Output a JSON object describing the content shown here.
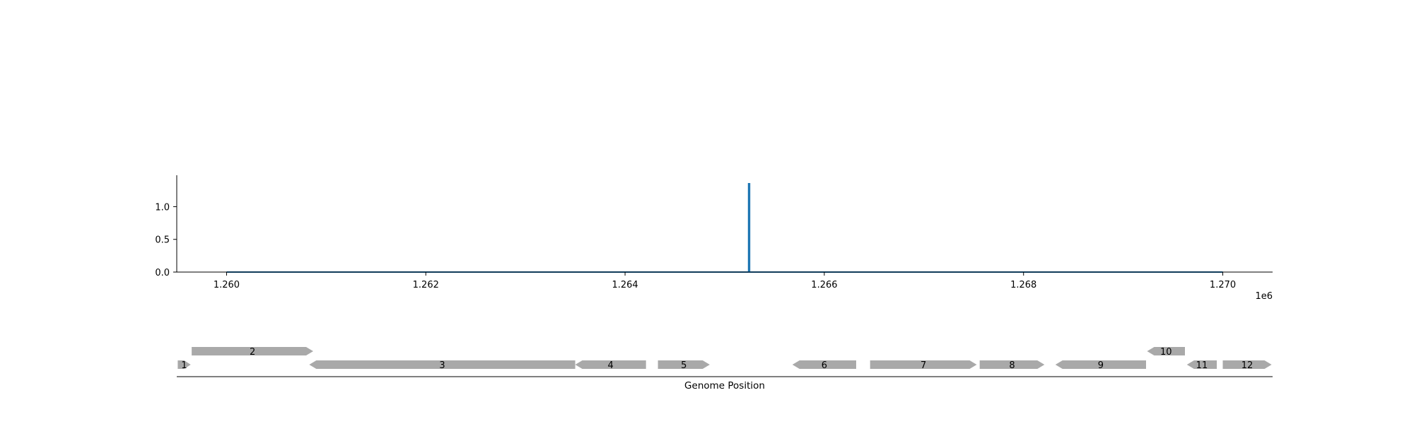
{
  "chart_data": [
    {
      "type": "line",
      "title": "",
      "xlabel": "",
      "ylabel": "",
      "x_offset_label": "1e6",
      "xlim": [
        1259500,
        1270500
      ],
      "ylim": [
        0,
        1.48
      ],
      "x_ticks": [
        1260000,
        1262000,
        1264000,
        1266000,
        1268000,
        1270000
      ],
      "x_tick_labels": [
        "1.260",
        "1.262",
        "1.264",
        "1.266",
        "1.268",
        "1.270"
      ],
      "y_ticks": [
        0.0,
        0.5,
        1.0
      ],
      "y_tick_labels": [
        "0.0",
        "0.5",
        "1.0"
      ],
      "grid": false,
      "series": [
        {
          "color": "#1f77b4",
          "points": [
            [
              1260000,
              0.0
            ],
            [
              1265240,
              0.0
            ],
            [
              1265240,
              1.35
            ],
            [
              1265250,
              1.35
            ],
            [
              1265250,
              0.0
            ],
            [
              1270000,
              0.0
            ]
          ]
        }
      ]
    },
    {
      "type": "gene-track",
      "xlabel": "Genome Position",
      "xlim": [
        1259500,
        1270500
      ],
      "color": "#a9a9a9",
      "genes": [
        {
          "label": "1",
          "start": 1259510,
          "end": 1259640,
          "strand": "+",
          "row": 0
        },
        {
          "label": "2",
          "start": 1259650,
          "end": 1260870,
          "strand": "+",
          "row": 1
        },
        {
          "label": "3",
          "start": 1260830,
          "end": 1263500,
          "strand": "-",
          "row": 0
        },
        {
          "label": "4",
          "start": 1263500,
          "end": 1264210,
          "strand": "-",
          "row": 0
        },
        {
          "label": "5",
          "start": 1264330,
          "end": 1264850,
          "strand": "+",
          "row": 0
        },
        {
          "label": "6",
          "start": 1265680,
          "end": 1266320,
          "strand": "-",
          "row": 0
        },
        {
          "label": "7",
          "start": 1266460,
          "end": 1267530,
          "strand": "+",
          "row": 0
        },
        {
          "label": "8",
          "start": 1267560,
          "end": 1268210,
          "strand": "+",
          "row": 0
        },
        {
          "label": "9",
          "start": 1268320,
          "end": 1269230,
          "strand": "-",
          "row": 0
        },
        {
          "label": "10",
          "start": 1269240,
          "end": 1269620,
          "strand": "-",
          "row": 1
        },
        {
          "label": "11",
          "start": 1269640,
          "end": 1269940,
          "strand": "-",
          "row": 0
        },
        {
          "label": "12",
          "start": 1270000,
          "end": 1270490,
          "strand": "+",
          "row": 0
        }
      ]
    }
  ]
}
